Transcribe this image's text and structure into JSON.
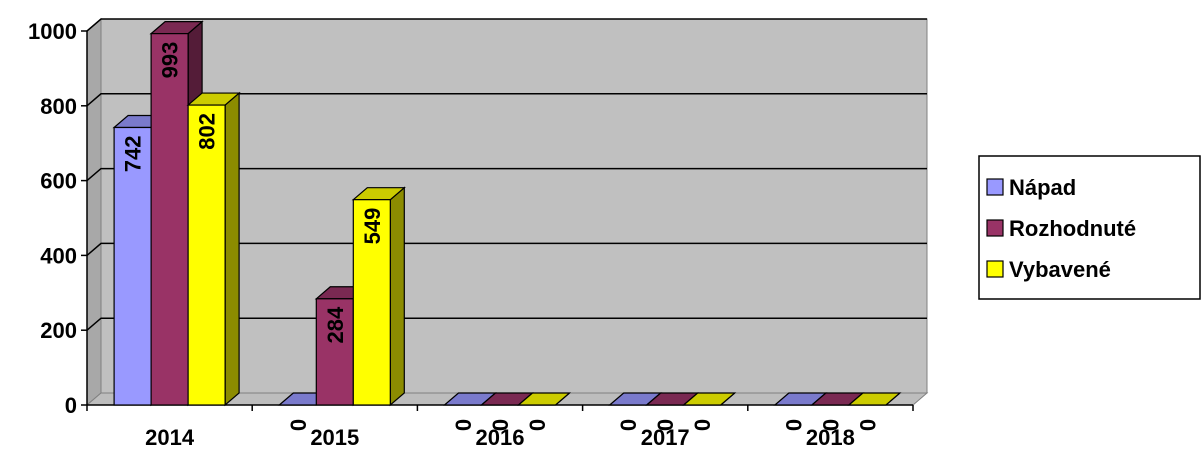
{
  "chart_data": {
    "type": "bar",
    "categories": [
      "2014",
      "2015",
      "2016",
      "2017",
      "2018"
    ],
    "series": [
      {
        "name": "Nápad",
        "values": [
          742,
          0,
          0,
          0,
          0
        ],
        "color": "#9999ff"
      },
      {
        "name": "Rozhodnuté",
        "values": [
          993,
          284,
          0,
          0,
          0
        ],
        "color": "#993366"
      },
      {
        "name": "Vybavené",
        "values": [
          802,
          549,
          0,
          0,
          0
        ],
        "color": "#ffff00"
      }
    ],
    "data_labels": [
      [
        "742",
        "0",
        "0",
        "0",
        "0"
      ],
      [
        "993",
        "284",
        "0",
        "0",
        "0"
      ],
      [
        "802",
        "549",
        "0",
        "0",
        "0"
      ]
    ],
    "y_ticks": [
      "0",
      "200",
      "400",
      "600",
      "800",
      "1000"
    ],
    "ylim": [
      0,
      1000
    ],
    "grid": true,
    "legend_position": "right",
    "wall_color": "#c0c0c0",
    "three_d": true
  }
}
